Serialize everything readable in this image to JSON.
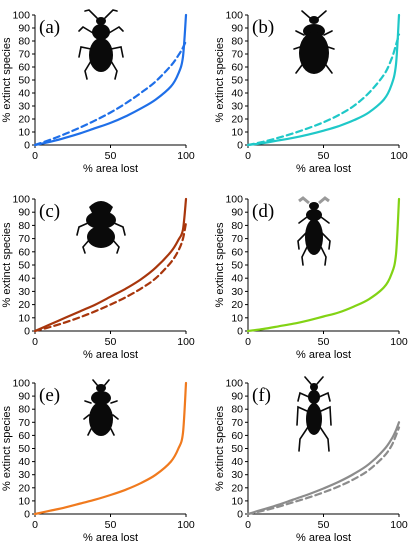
{
  "chart_data": [
    {
      "panel": "(a)",
      "type": "line",
      "xlabel": "% area lost",
      "ylabel": "% extinct species",
      "xlim": [
        0,
        100
      ],
      "ylim": [
        0,
        100
      ],
      "xticks": [
        "0",
        "50",
        "100"
      ],
      "yticks": [
        "0",
        "10",
        "20",
        "30",
        "40",
        "50",
        "60",
        "70",
        "80",
        "90",
        "100"
      ],
      "beetle": "ground-beetle",
      "series": [
        {
          "style": "solid",
          "color": "#1f6fe8",
          "x": [
            0,
            10,
            20,
            30,
            40,
            50,
            60,
            70,
            80,
            90,
            95,
            98,
            100
          ],
          "y": [
            0,
            2.5,
            5.5,
            9,
            13,
            17,
            22,
            28,
            35,
            45,
            55,
            68,
            100
          ]
        },
        {
          "style": "dashed",
          "color": "#1f6fe8",
          "x": [
            0,
            10,
            20,
            30,
            40,
            50,
            60,
            70,
            80,
            90,
            95,
            98,
            100
          ],
          "y": [
            0,
            4,
            8.5,
            13.5,
            19,
            25,
            32,
            40,
            49,
            61,
            69,
            75,
            80
          ]
        }
      ]
    },
    {
      "panel": "(b)",
      "type": "line",
      "xlabel": "% area lost",
      "ylabel": "% extinct species",
      "xlim": [
        0,
        100
      ],
      "ylim": [
        0,
        100
      ],
      "xticks": [
        "0",
        "50",
        "100"
      ],
      "yticks": [
        "0",
        "10",
        "20",
        "30",
        "40",
        "50",
        "60",
        "70",
        "80",
        "90",
        "100"
      ],
      "beetle": "oval-beetle",
      "series": [
        {
          "style": "solid",
          "color": "#1fc8c8",
          "x": [
            0,
            10,
            20,
            30,
            40,
            50,
            60,
            70,
            80,
            90,
            95,
            98,
            100
          ],
          "y": [
            0,
            1.5,
            3.5,
            5.5,
            8,
            11,
            14.5,
            19,
            25,
            35,
            46,
            62,
            100
          ]
        },
        {
          "style": "dashed",
          "color": "#1fc8c8",
          "x": [
            0,
            10,
            20,
            30,
            40,
            50,
            60,
            70,
            80,
            90,
            95,
            98,
            100
          ],
          "y": [
            0,
            2.5,
            5.5,
            9,
            13,
            17.5,
            23,
            30,
            40,
            54,
            66,
            77,
            85
          ]
        }
      ]
    },
    {
      "panel": "(c)",
      "type": "line",
      "xlabel": "% area lost",
      "ylabel": "% extinct species",
      "xlim": [
        0,
        100
      ],
      "ylim": [
        0,
        100
      ],
      "xticks": [
        "0",
        "50",
        "100"
      ],
      "yticks": [
        "0",
        "10",
        "20",
        "30",
        "40",
        "50",
        "60",
        "70",
        "80",
        "90",
        "100"
      ],
      "beetle": "dung-beetle",
      "series": [
        {
          "style": "solid",
          "color": "#a8360c",
          "x": [
            0,
            10,
            20,
            30,
            40,
            50,
            60,
            70,
            80,
            90,
            95,
            98,
            100
          ],
          "y": [
            0,
            5,
            10,
            15,
            20,
            26,
            32,
            39,
            48,
            60,
            69,
            77,
            100
          ]
        },
        {
          "style": "dashed",
          "color": "#a8360c",
          "x": [
            0,
            10,
            20,
            30,
            40,
            50,
            60,
            70,
            80,
            90,
            95,
            98,
            100
          ],
          "y": [
            0,
            3,
            6.5,
            10.5,
            15,
            20,
            25.5,
            32,
            40,
            52,
            61,
            70,
            82
          ]
        }
      ]
    },
    {
      "panel": "(d)",
      "type": "line",
      "xlabel": "% area lost",
      "ylabel": "% extinct species",
      "xlim": [
        0,
        100
      ],
      "ylim": [
        0,
        100
      ],
      "xticks": [
        "0",
        "50",
        "100"
      ],
      "yticks": [
        "0",
        "10",
        "20",
        "30",
        "40",
        "50",
        "60",
        "70",
        "80",
        "90",
        "100"
      ],
      "beetle": "long-beetle",
      "series": [
        {
          "style": "solid",
          "color": "#82d314",
          "x": [
            0,
            10,
            20,
            30,
            40,
            50,
            60,
            70,
            80,
            90,
            95,
            98,
            100
          ],
          "y": [
            0,
            1.5,
            3.5,
            5.5,
            8,
            11,
            14,
            18.5,
            24,
            33,
            43,
            58,
            100
          ]
        }
      ]
    },
    {
      "panel": "(e)",
      "type": "line",
      "xlabel": "% area lost",
      "ylabel": "% extinct species",
      "xlim": [
        0,
        100
      ],
      "ylim": [
        0,
        100
      ],
      "xticks": [
        "0",
        "50",
        "100"
      ],
      "yticks": [
        "0",
        "10",
        "20",
        "30",
        "40",
        "50",
        "60",
        "70",
        "80",
        "90",
        "100"
      ],
      "beetle": "round-beetle",
      "series": [
        {
          "style": "solid",
          "color": "#f07a1e",
          "x": [
            0,
            10,
            20,
            30,
            40,
            50,
            60,
            70,
            80,
            90,
            95,
            98,
            100
          ],
          "y": [
            0,
            2.5,
            5,
            8,
            11,
            14.5,
            18.5,
            23.5,
            30,
            40,
            50,
            62,
            100
          ]
        }
      ]
    },
    {
      "panel": "(f)",
      "type": "line",
      "xlabel": "% area lost",
      "ylabel": "% extinct species",
      "xlim": [
        0,
        100
      ],
      "ylim": [
        0,
        100
      ],
      "xticks": [
        "0",
        "50",
        "100"
      ],
      "yticks": [
        "0",
        "10",
        "20",
        "30",
        "40",
        "50",
        "60",
        "70",
        "80",
        "90",
        "100"
      ],
      "beetle": "leggy-beetle",
      "series": [
        {
          "style": "solid",
          "color": "#8c8c8c",
          "x": [
            0,
            10,
            20,
            30,
            40,
            50,
            60,
            70,
            80,
            90,
            95,
            98,
            100
          ],
          "y": [
            0,
            3.5,
            7,
            11,
            15,
            19.5,
            24.5,
            30.5,
            38,
            49,
            57,
            64,
            70
          ]
        },
        {
          "style": "dashed",
          "color": "#8c8c8c",
          "x": [
            0,
            10,
            20,
            30,
            40,
            50,
            60,
            70,
            80,
            90,
            95,
            98,
            100
          ],
          "y": [
            0,
            2.5,
            5.5,
            9,
            12.5,
            16.5,
            21,
            26.5,
            33.5,
            44,
            52,
            60,
            66
          ]
        }
      ]
    }
  ]
}
